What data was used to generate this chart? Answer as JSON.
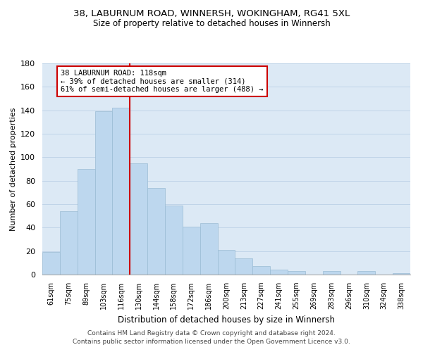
{
  "title": "38, LABURNUM ROAD, WINNERSH, WOKINGHAM, RG41 5XL",
  "subtitle": "Size of property relative to detached houses in Winnersh",
  "xlabel": "Distribution of detached houses by size in Winnersh",
  "ylabel": "Number of detached properties",
  "bar_labels": [
    "61sqm",
    "75sqm",
    "89sqm",
    "103sqm",
    "116sqm",
    "130sqm",
    "144sqm",
    "158sqm",
    "172sqm",
    "186sqm",
    "200sqm",
    "213sqm",
    "227sqm",
    "241sqm",
    "255sqm",
    "269sqm",
    "283sqm",
    "296sqm",
    "310sqm",
    "324sqm",
    "338sqm"
  ],
  "bar_values": [
    19,
    54,
    90,
    139,
    142,
    95,
    74,
    59,
    41,
    44,
    21,
    14,
    7,
    4,
    3,
    0,
    3,
    0,
    3,
    0,
    1
  ],
  "bar_color": "#bdd7ee",
  "bar_edge_color": "#9abcd4",
  "background_color": "#ffffff",
  "plot_bg_color": "#dce9f5",
  "grid_color": "#c0d4e8",
  "vline_index": 4,
  "vline_color": "#cc0000",
  "annotation_line1": "38 LABURNUM ROAD: 118sqm",
  "annotation_line2": "← 39% of detached houses are smaller (314)",
  "annotation_line3": "61% of semi-detached houses are larger (488) →",
  "annotation_box_color": "#ffffff",
  "annotation_box_edge": "#cc0000",
  "ylim": [
    0,
    180
  ],
  "yticks": [
    0,
    20,
    40,
    60,
    80,
    100,
    120,
    140,
    160,
    180
  ],
  "footer1": "Contains HM Land Registry data © Crown copyright and database right 2024.",
  "footer2": "Contains public sector information licensed under the Open Government Licence v3.0."
}
